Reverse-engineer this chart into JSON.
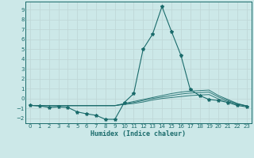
{
  "xlabel": "Humidex (Indice chaleur)",
  "bg_color": "#cce8e8",
  "grid_color": "#b0d0d0",
  "line_color": "#1a6b6b",
  "xlim": [
    -0.5,
    23.5
  ],
  "ylim": [
    -2.5,
    9.8
  ],
  "xticks": [
    0,
    1,
    2,
    3,
    4,
    5,
    6,
    7,
    8,
    9,
    10,
    11,
    12,
    13,
    14,
    15,
    16,
    17,
    18,
    19,
    20,
    21,
    22,
    23
  ],
  "yticks": [
    -2,
    -1,
    0,
    1,
    2,
    3,
    4,
    5,
    6,
    7,
    8,
    9
  ],
  "series": [
    {
      "x": [
        0,
        1,
        2,
        3,
        4,
        5,
        6,
        7,
        8,
        9,
        10,
        11,
        12,
        13,
        14,
        15,
        16,
        17,
        18,
        19,
        20,
        21,
        22,
        23
      ],
      "y": [
        -0.7,
        -0.75,
        -0.9,
        -0.85,
        -0.9,
        -1.35,
        -1.55,
        -1.7,
        -2.1,
        -2.1,
        -0.4,
        0.5,
        5.0,
        6.5,
        9.3,
        6.8,
        4.4,
        0.9,
        0.3,
        -0.1,
        -0.2,
        -0.4,
        -0.7,
        -0.85
      ],
      "marker": true
    },
    {
      "x": [
        0,
        1,
        2,
        3,
        4,
        5,
        6,
        7,
        8,
        9,
        10,
        11,
        12,
        13,
        14,
        15,
        16,
        17,
        18,
        19,
        20,
        21,
        22,
        23
      ],
      "y": [
        -0.7,
        -0.72,
        -0.72,
        -0.72,
        -0.72,
        -0.72,
        -0.72,
        -0.72,
        -0.72,
        -0.72,
        -0.5,
        -0.3,
        -0.1,
        0.1,
        0.3,
        0.5,
        0.65,
        0.75,
        0.8,
        0.85,
        0.3,
        -0.1,
        -0.5,
        -0.75
      ],
      "marker": false
    },
    {
      "x": [
        0,
        1,
        2,
        3,
        4,
        5,
        6,
        7,
        8,
        9,
        10,
        11,
        12,
        13,
        14,
        15,
        16,
        17,
        18,
        19,
        20,
        21,
        22,
        23
      ],
      "y": [
        -0.7,
        -0.72,
        -0.72,
        -0.72,
        -0.72,
        -0.72,
        -0.72,
        -0.72,
        -0.72,
        -0.72,
        -0.55,
        -0.4,
        -0.2,
        0.0,
        0.15,
        0.3,
        0.45,
        0.55,
        0.6,
        0.65,
        0.15,
        -0.2,
        -0.55,
        -0.75
      ],
      "marker": false
    },
    {
      "x": [
        0,
        1,
        2,
        3,
        4,
        5,
        6,
        7,
        8,
        9,
        10,
        11,
        12,
        13,
        14,
        15,
        16,
        17,
        18,
        19,
        20,
        21,
        22,
        23
      ],
      "y": [
        -0.7,
        -0.72,
        -0.72,
        -0.72,
        -0.72,
        -0.72,
        -0.72,
        -0.72,
        -0.72,
        -0.72,
        -0.6,
        -0.5,
        -0.35,
        -0.15,
        0.0,
        0.1,
        0.2,
        0.3,
        0.35,
        0.4,
        -0.05,
        -0.3,
        -0.6,
        -0.75
      ],
      "marker": false
    }
  ]
}
